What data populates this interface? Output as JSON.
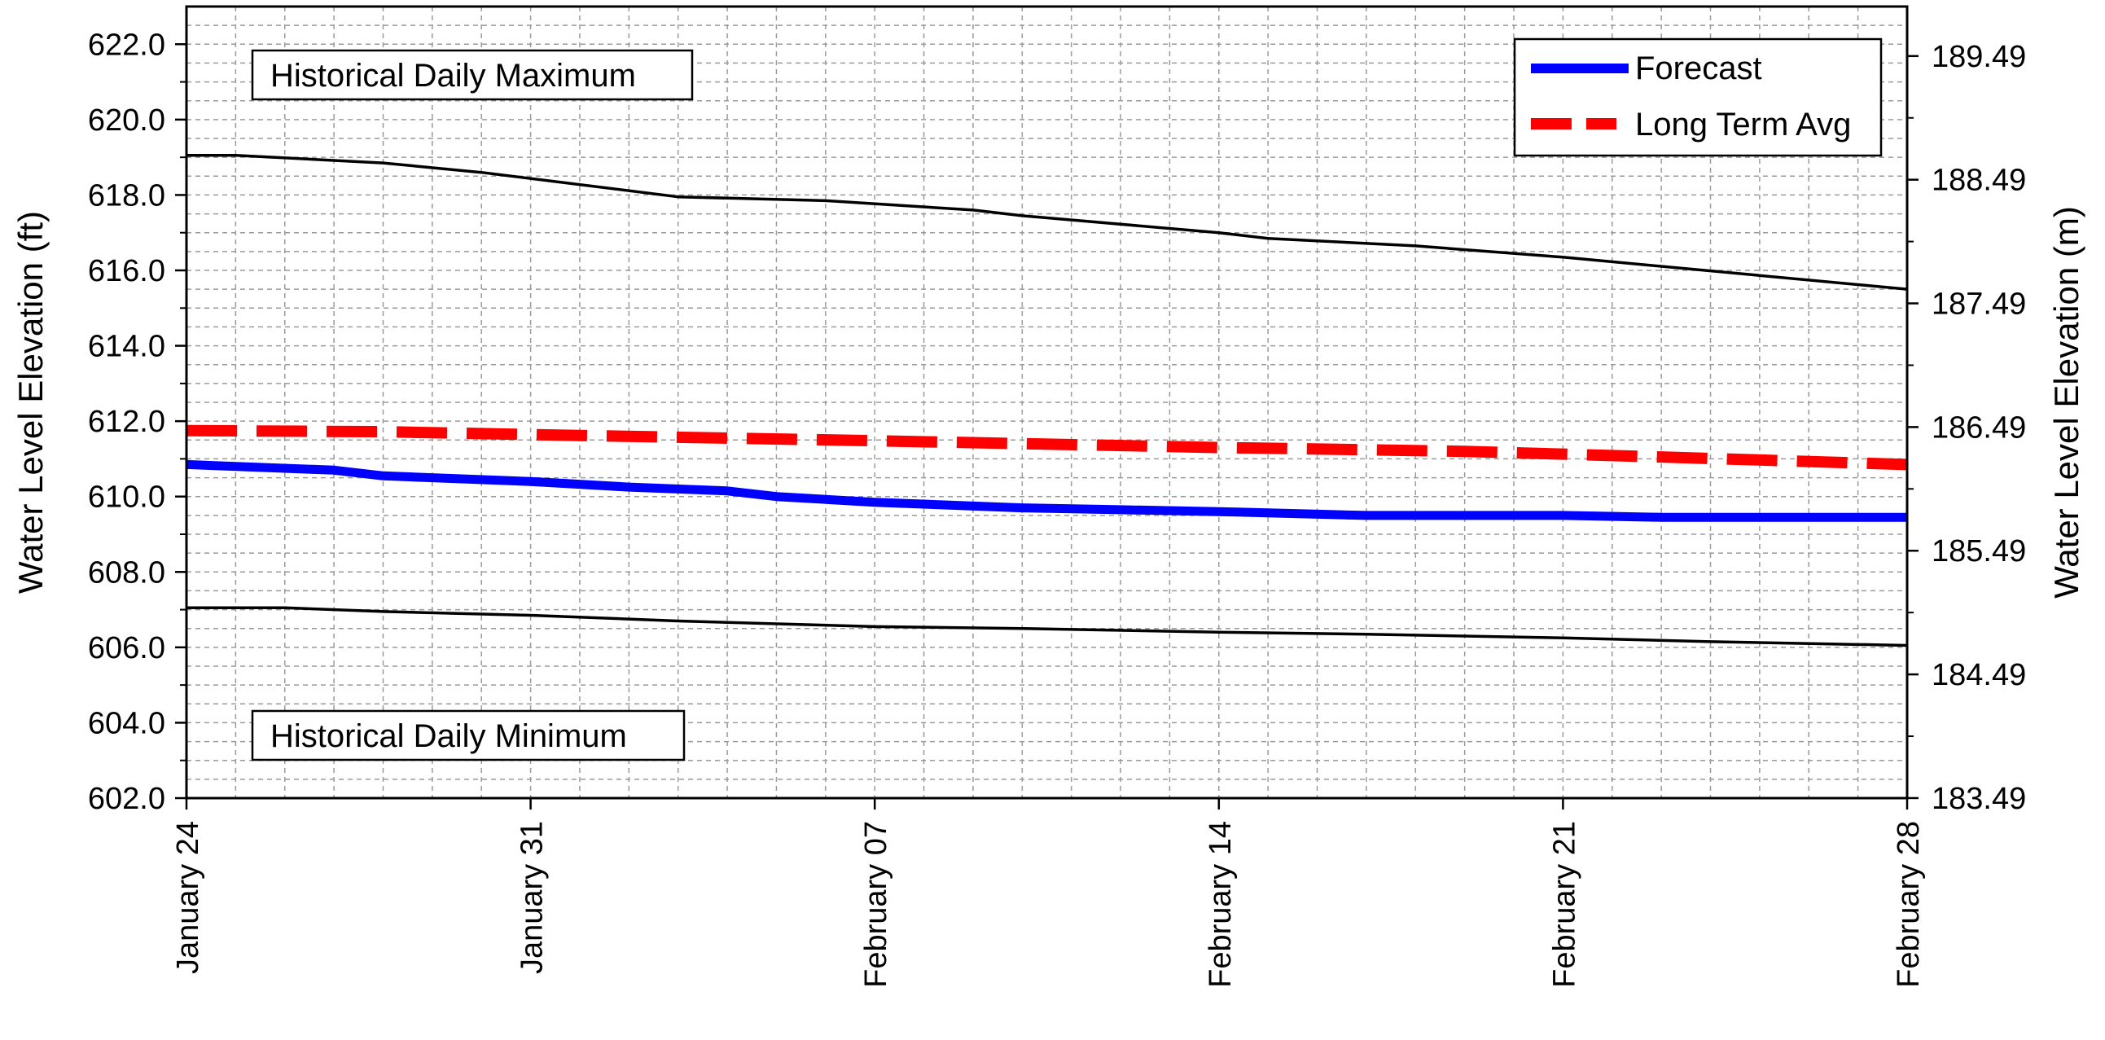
{
  "chart_data": {
    "type": "line",
    "title": "",
    "ylabel": "Water Level Elevation (ft)",
    "y2label": "Water Level Elevation (m)",
    "xlim": [
      "2025-01-24",
      "2025-02-28"
    ],
    "x_tick_labels": [
      "January 24",
      "January 31",
      "February 07",
      "February 14",
      "February 21",
      "February 28"
    ],
    "ylim": [
      602.0,
      623.0
    ],
    "y_ticks": [
      "602.0",
      "604.0",
      "606.0",
      "608.0",
      "610.0",
      "612.0",
      "614.0",
      "616.0",
      "618.0",
      "620.0",
      "622.0"
    ],
    "y2_ticks": [
      "183.49",
      "184.49",
      "185.49",
      "186.49",
      "187.49",
      "188.49",
      "189.49"
    ],
    "grid": true,
    "legend_position": "top-right",
    "annotations": {
      "max_label": "Historical Daily Maximum",
      "min_label": "Historical Daily Minimum"
    },
    "series": [
      {
        "name": "Forecast",
        "color": "#0000ff",
        "style": "solid",
        "x": [
          "2025-01-24",
          "2025-01-27",
          "2025-01-28",
          "2025-01-31",
          "2025-02-02",
          "2025-02-04",
          "2025-02-05",
          "2025-02-07",
          "2025-02-10",
          "2025-02-12",
          "2025-02-14",
          "2025-02-17",
          "2025-02-21",
          "2025-02-23",
          "2025-02-28"
        ],
        "y": [
          610.85,
          610.7,
          610.55,
          610.4,
          610.25,
          610.15,
          610.0,
          609.85,
          609.7,
          609.65,
          609.6,
          609.5,
          609.5,
          609.45,
          609.45
        ]
      },
      {
        "name": "Long Term Avg",
        "color": "#ff0000",
        "style": "dashed",
        "x": [
          "2025-01-24",
          "2025-01-28",
          "2025-02-01",
          "2025-02-07",
          "2025-02-14",
          "2025-02-19",
          "2025-02-23",
          "2025-02-28"
        ],
        "y": [
          611.75,
          611.72,
          611.62,
          611.48,
          611.3,
          611.2,
          611.05,
          610.85
        ]
      },
      {
        "name": "",
        "color": "#000000",
        "style": "solid",
        "x": [
          "2025-01-24",
          "2025-01-25",
          "2025-01-28",
          "2025-01-30",
          "2025-02-03",
          "2025-02-06",
          "2025-02-09",
          "2025-02-10",
          "2025-02-14",
          "2025-02-15",
          "2025-02-18",
          "2025-02-21",
          "2025-02-28"
        ],
        "y": [
          619.05,
          619.05,
          618.85,
          618.6,
          617.95,
          617.85,
          617.6,
          617.45,
          617.0,
          616.85,
          616.65,
          616.35,
          615.5
        ]
      },
      {
        "name": "",
        "color": "#000000",
        "style": "solid",
        "x": [
          "2025-01-24",
          "2025-01-26",
          "2025-01-28",
          "2025-01-31",
          "2025-02-03",
          "2025-02-07",
          "2025-02-10",
          "2025-02-14",
          "2025-02-17",
          "2025-02-21",
          "2025-02-24",
          "2025-02-28"
        ],
        "y": [
          607.05,
          607.05,
          606.95,
          606.85,
          606.7,
          606.55,
          606.5,
          606.4,
          606.35,
          606.25,
          606.15,
          606.05
        ]
      }
    ]
  }
}
